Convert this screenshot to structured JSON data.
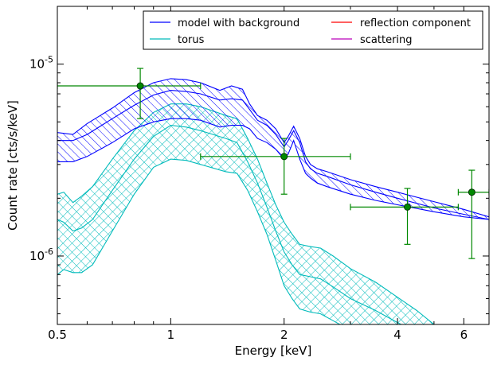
{
  "chart_data": {
    "type": "line",
    "xlabel": "Energy [keV]",
    "ylabel": "Count rate [cts/s/keV]",
    "x_scale": "log",
    "y_scale": "log",
    "xlim": [
      0.5,
      7.0
    ],
    "ylim": [
      4.4e-07,
      2e-05
    ],
    "x_ticks": [
      {
        "value": 0.5,
        "label": "0.5"
      },
      {
        "value": 1,
        "label": "1"
      },
      {
        "value": 2,
        "label": "2"
      },
      {
        "value": 4,
        "label": "4"
      },
      {
        "value": 6,
        "label": "6"
      }
    ],
    "y_ticks": [
      {
        "value": 1e-06,
        "base": "10",
        "exp": "-6"
      },
      {
        "value": 1e-05,
        "base": "10",
        "exp": "-5"
      }
    ],
    "legend_position": "top-right",
    "legend": [
      {
        "label": "model with background",
        "color": "#0000ff"
      },
      {
        "label": "reflection component",
        "color": "#ff0000"
      },
      {
        "label": "torus",
        "color": "#00bbbb"
      },
      {
        "label": "scattering",
        "color": "#bb00bb"
      }
    ],
    "series": [
      {
        "name": "model with background",
        "color": "#0000ff",
        "hatch": "diagonal",
        "x": [
          0.5,
          0.55,
          0.6,
          0.7,
          0.8,
          0.9,
          1.0,
          1.1,
          1.2,
          1.35,
          1.45,
          1.55,
          1.62,
          1.7,
          1.8,
          1.9,
          2.0,
          2.05,
          2.12,
          2.2,
          2.28,
          2.35,
          2.45,
          2.6,
          3.0,
          3.5,
          4.0,
          5.0,
          6.0,
          7.0
        ],
        "upper": [
          4.4e-06,
          4.3e-06,
          4.9e-06,
          5.9e-06,
          7.1e-06,
          8e-06,
          8.4e-06,
          8.3e-06,
          8e-06,
          7.3e-06,
          7.7e-06,
          7.4e-06,
          6.2e-06,
          5.4e-06,
          5.1e-06,
          4.6e-06,
          3.9e-06,
          4.2e-06,
          4.75e-06,
          4.1e-06,
          3.3e-06,
          3e-06,
          2.85e-06,
          2.75e-06,
          2.5e-06,
          2.3e-06,
          2.15e-06,
          1.92e-06,
          1.75e-06,
          1.6e-06
        ],
        "middle": [
          4e-06,
          4e-06,
          4.3e-06,
          5.2e-06,
          6.1e-06,
          6.9e-06,
          7.3e-06,
          7.2e-06,
          7e-06,
          6.5e-06,
          6.6e-06,
          6.5e-06,
          5.8e-06,
          5.1e-06,
          4.8e-06,
          4.3e-06,
          3.7e-06,
          4e-06,
          4.5e-06,
          3.9e-06,
          3.1e-06,
          2.85e-06,
          2.7e-06,
          2.6e-06,
          2.35e-06,
          2.15e-06,
          2e-06,
          1.78e-06,
          1.65e-06,
          1.55e-06
        ],
        "lower": [
          3.1e-06,
          3.1e-06,
          3.3e-06,
          3.9e-06,
          4.6e-06,
          5e-06,
          5.2e-06,
          5.2e-06,
          5.1e-06,
          4.7e-06,
          4.8e-06,
          4.8e-06,
          4.6e-06,
          4.1e-06,
          3.9e-06,
          3.6e-06,
          3.2e-06,
          3.4e-06,
          4e-06,
          3.2e-06,
          2.7e-06,
          2.55e-06,
          2.4e-06,
          2.3e-06,
          2.1e-06,
          1.95e-06,
          1.85e-06,
          1.7e-06,
          1.6e-06,
          1.55e-06
        ]
      },
      {
        "name": "torus",
        "color": "#00bbbb",
        "hatch": "crosshatch",
        "x": [
          0.5,
          0.52,
          0.55,
          0.58,
          0.62,
          0.7,
          0.8,
          0.9,
          1.0,
          1.1,
          1.2,
          1.4,
          1.5,
          1.6,
          1.7,
          1.8,
          1.9,
          2.0,
          2.1,
          2.2,
          2.35,
          2.5,
          2.7,
          3.0,
          3.5,
          4.0,
          4.5,
          5.0
        ],
        "upper": [
          2.1e-06,
          2.15e-06,
          1.9e-06,
          2.05e-06,
          2.3e-06,
          3.2e-06,
          4.5e-06,
          5.6e-06,
          6.2e-06,
          6.2e-06,
          6e-06,
          5.4e-06,
          5.2e-06,
          4.1e-06,
          3.2e-06,
          2.4e-06,
          1.85e-06,
          1.5e-06,
          1.3e-06,
          1.15e-06,
          1.12e-06,
          1.1e-06,
          1e-06,
          8.6e-07,
          7.3e-07,
          6.1e-07,
          5.2e-07,
          4.4e-07
        ],
        "middle": [
          1.55e-06,
          1.5e-06,
          1.35e-06,
          1.4e-06,
          1.55e-06,
          2.2e-06,
          3.2e-06,
          4.2e-06,
          4.8e-06,
          4.7e-06,
          4.5e-06,
          4.1e-06,
          3.9e-06,
          3.1e-06,
          2.4e-06,
          1.8e-06,
          1.35e-06,
          1.05e-06,
          9e-07,
          8e-07,
          7.8e-07,
          7.6e-07,
          6.9e-07,
          6e-07,
          5.2e-07,
          4.5e-07,
          4e-07,
          3.6e-07
        ],
        "lower": [
          8e-07,
          8.5e-07,
          8.2e-07,
          8.2e-07,
          9e-07,
          1.35e-06,
          2.1e-06,
          2.9e-06,
          3.2e-06,
          3.15e-06,
          3e-06,
          2.75e-06,
          2.7e-06,
          2.2e-06,
          1.7e-06,
          1.3e-06,
          9.5e-07,
          7e-07,
          6e-07,
          5.3e-07,
          5.1e-07,
          5e-07,
          4.6e-07,
          4.1e-07,
          3.6e-07,
          3.2e-07,
          2.9e-07,
          2.6e-07
        ]
      }
    ],
    "data_points": {
      "color": "#008800",
      "points": [
        {
          "x": 0.83,
          "y": 7.7e-06,
          "xerr_low": 0.5,
          "xerr_high": 1.2,
          "yerr_low": 5.2e-06,
          "yerr_high": 9.5e-06
        },
        {
          "x": 2.0,
          "y": 3.3e-06,
          "xerr_low": 1.2,
          "xerr_high": 3.0,
          "yerr_low": 2.1e-06,
          "yerr_high": 4.1e-06
        },
        {
          "x": 4.25,
          "y": 1.8e-06,
          "xerr_low": 3.0,
          "xerr_high": 5.8,
          "yerr_low": 1.15e-06,
          "yerr_high": 2.25e-06
        },
        {
          "x": 6.3,
          "y": 2.15e-06,
          "xerr_low": 5.8,
          "xerr_high": 7.0,
          "yerr_low": 9.7e-07,
          "yerr_high": 2.8e-06
        }
      ]
    }
  }
}
